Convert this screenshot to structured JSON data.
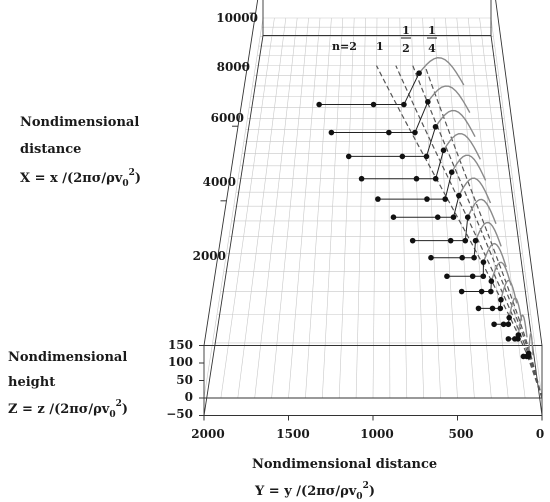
{
  "chart_data": {
    "type": "line",
    "projection": "3d-perspective",
    "x_axis": {
      "label_line1": "Nondimensional",
      "label_line2": "distance",
      "label_line3_prefix": "X = x /(2πσ/ρv",
      "label_line3_suffix": ")",
      "ticks": [
        2000,
        4000,
        6000,
        8000,
        10000
      ],
      "tick_labels": [
        "2000",
        "4000",
        "6000",
        "8000",
        "10000"
      ],
      "range": [
        0,
        10000
      ]
    },
    "y_axis": {
      "label_line1": "Nondimensional distance",
      "label_line2_prefix": "Y = y /(2πσ/ρv",
      "label_line2_suffix": ")",
      "ticks": [
        2000,
        1500,
        1000,
        500,
        0
      ],
      "tick_labels": [
        "2000",
        "1500",
        "1000",
        "500",
        "0"
      ],
      "range": [
        0,
        2000
      ],
      "reversed": true
    },
    "z_axis": {
      "label_line1": "Nondimensional",
      "label_line2": "height",
      "label_line3_prefix": "Z = z /(2πσ/ρv",
      "label_line3_suffix": ")",
      "ticks": [
        -50,
        0,
        50,
        100,
        150
      ],
      "tick_labels": [
        "−50",
        "0",
        "50",
        "100",
        "150"
      ],
      "range": [
        -50,
        150
      ]
    },
    "subscript_zero": "0",
    "superscript_two": "2",
    "grid": true,
    "series": [
      {
        "points": [
          [
            6500,
            1450
          ],
          [
            6500,
            1020
          ],
          [
            6500,
            780
          ],
          [
            7700,
            650
          ]
        ]
      },
      {
        "points": [
          [
            5500,
            1340
          ],
          [
            5500,
            900
          ],
          [
            5500,
            700
          ],
          [
            6600,
            590
          ]
        ]
      },
      {
        "points": [
          [
            4700,
            1200
          ],
          [
            4700,
            800
          ],
          [
            4700,
            620
          ],
          [
            5700,
            540
          ]
        ]
      },
      {
        "points": [
          [
            4000,
            1100
          ],
          [
            4000,
            700
          ],
          [
            4000,
            560
          ],
          [
            4900,
            490
          ]
        ]
      },
      {
        "points": [
          [
            3400,
            980
          ],
          [
            3400,
            630
          ],
          [
            3400,
            500
          ],
          [
            4200,
            440
          ]
        ]
      },
      {
        "points": [
          [
            2900,
            870
          ],
          [
            2900,
            560
          ],
          [
            2900,
            450
          ],
          [
            3500,
            400
          ]
        ]
      },
      {
        "points": [
          [
            2300,
            740
          ],
          [
            2300,
            480
          ],
          [
            2300,
            380
          ],
          [
            2900,
            350
          ]
        ]
      },
      {
        "points": [
          [
            1900,
            620
          ],
          [
            1900,
            410
          ],
          [
            1900,
            330
          ],
          [
            2300,
            310
          ]
        ]
      },
      {
        "points": [
          [
            1500,
            520
          ],
          [
            1500,
            350
          ],
          [
            1500,
            280
          ],
          [
            1800,
            270
          ]
        ]
      },
      {
        "points": [
          [
            1200,
            430
          ],
          [
            1200,
            300
          ],
          [
            1200,
            240
          ],
          [
            1400,
            230
          ]
        ]
      },
      {
        "points": [
          [
            900,
            330
          ],
          [
            900,
            240
          ],
          [
            900,
            190
          ],
          [
            1050,
            180
          ]
        ]
      },
      {
        "points": [
          [
            650,
            240
          ],
          [
            650,
            180
          ],
          [
            650,
            150
          ],
          [
            750,
            140
          ]
        ]
      },
      {
        "points": [
          [
            450,
            160
          ],
          [
            450,
            120
          ],
          [
            450,
            100
          ],
          [
            500,
            95
          ]
        ]
      },
      {
        "points": [
          [
            250,
            80
          ],
          [
            250,
            60
          ],
          [
            250,
            50
          ],
          [
            280,
            45
          ]
        ]
      }
    ],
    "curves": [
      {
        "label": "n=2",
        "style": "dashed"
      },
      {
        "label": "1",
        "style": "dashed"
      },
      {
        "label_num": "1",
        "label_den": "2",
        "style": "dashed"
      },
      {
        "label_num": "1",
        "label_den": "4",
        "style": "dashed"
      }
    ]
  }
}
